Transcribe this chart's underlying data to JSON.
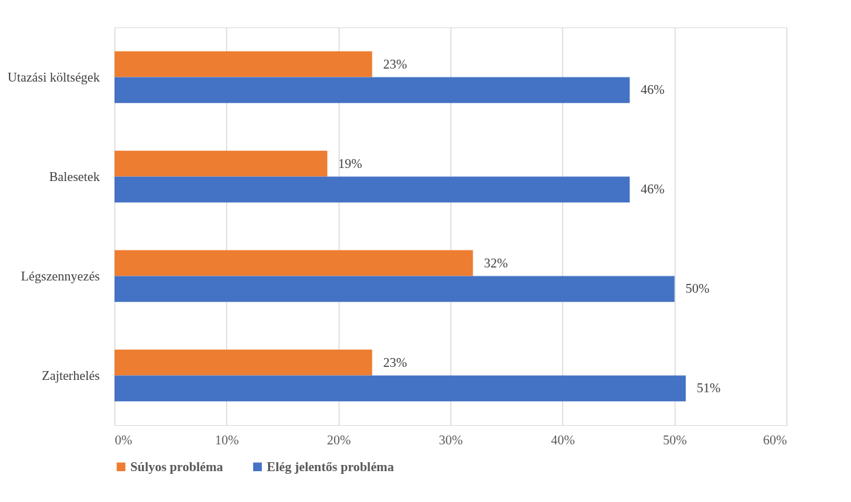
{
  "chart_data": {
    "type": "bar",
    "orientation": "horizontal",
    "categories": [
      "Utazási költségek",
      "Balesetek",
      "Légszennyezés",
      "Zajterhelés"
    ],
    "series": [
      {
        "name": "Súlyos probléma",
        "color": "#ed7d31",
        "values": [
          23,
          19,
          32,
          23
        ],
        "value_labels": [
          "23%",
          "19%",
          "32%",
          "23%"
        ]
      },
      {
        "name": "Elég jelentős probléma",
        "color": "#4472c4",
        "values": [
          46,
          46,
          50,
          51
        ],
        "value_labels": [
          "46%",
          "46%",
          "50%",
          "51%"
        ]
      }
    ],
    "xlim": [
      0,
      60
    ],
    "xticks": [
      {
        "value": 0,
        "label": "0%"
      },
      {
        "value": 10,
        "label": "10%"
      },
      {
        "value": 20,
        "label": "20%"
      },
      {
        "value": 30,
        "label": "30%"
      },
      {
        "value": 40,
        "label": "40%"
      },
      {
        "value": 50,
        "label": "50%"
      },
      {
        "value": 60,
        "label": "60%"
      }
    ],
    "grid": "x",
    "legend": "bottom"
  }
}
